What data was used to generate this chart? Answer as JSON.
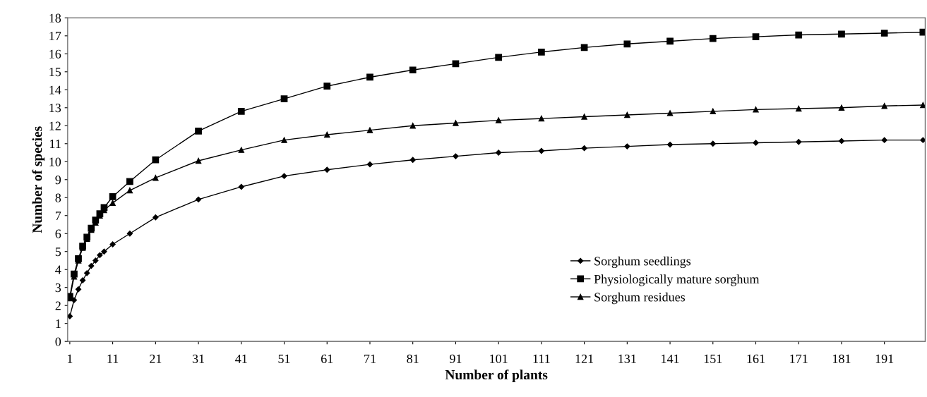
{
  "chart_data": {
    "type": "line",
    "xlabel": "Number of plants",
    "ylabel": "Number of species",
    "xlim": [
      0.5,
      200.5
    ],
    "xticks": [
      1,
      11,
      21,
      31,
      41,
      51,
      61,
      71,
      81,
      91,
      101,
      111,
      121,
      131,
      141,
      151,
      161,
      171,
      181,
      191
    ],
    "ylim": [
      0,
      18
    ],
    "yticks": [
      0,
      1,
      2,
      3,
      4,
      5,
      6,
      7,
      8,
      9,
      10,
      11,
      12,
      13,
      14,
      15,
      16,
      17,
      18
    ],
    "grid": false,
    "legend": "bottom right",
    "line_style": "solid",
    "x": [
      1,
      2,
      3,
      4,
      5,
      6,
      7,
      8,
      9,
      11,
      15,
      21,
      31,
      41,
      51,
      61,
      71,
      81,
      91,
      101,
      111,
      121,
      131,
      141,
      151,
      161,
      171,
      181,
      191,
      200
    ],
    "series": [
      {
        "name": "Sorghum seedlings",
        "color": "#000000",
        "marker": "diamond",
        "values": [
          1.4,
          2.3,
          2.9,
          3.4,
          3.8,
          4.2,
          4.5,
          4.8,
          5.0,
          5.4,
          6.0,
          6.9,
          7.9,
          8.6,
          9.2,
          9.55,
          9.85,
          10.1,
          10.3,
          10.5,
          10.6,
          10.75,
          10.85,
          10.95,
          11.0,
          11.05,
          11.1,
          11.15,
          11.2,
          11.2
        ]
      },
      {
        "name": "Physiologically mature sorghum",
        "color": "#000000",
        "marker": "square",
        "values": [
          2.5,
          3.75,
          4.6,
          5.3,
          5.8,
          6.3,
          6.75,
          7.1,
          7.45,
          8.05,
          8.9,
          10.1,
          11.7,
          12.8,
          13.5,
          14.2,
          14.7,
          15.1,
          15.45,
          15.8,
          16.1,
          16.35,
          16.55,
          16.7,
          16.85,
          16.95,
          17.05,
          17.1,
          17.15,
          17.2
        ]
      },
      {
        "name": "Sorghum residues",
        "color": "#000000",
        "marker": "triangle",
        "values": [
          2.4,
          3.6,
          4.5,
          5.2,
          5.7,
          6.2,
          6.6,
          7.0,
          7.3,
          7.7,
          8.4,
          9.1,
          10.05,
          10.65,
          11.2,
          11.5,
          11.75,
          12.0,
          12.15,
          12.3,
          12.4,
          12.5,
          12.6,
          12.7,
          12.8,
          12.9,
          12.95,
          13.0,
          13.1,
          13.15
        ]
      }
    ]
  }
}
